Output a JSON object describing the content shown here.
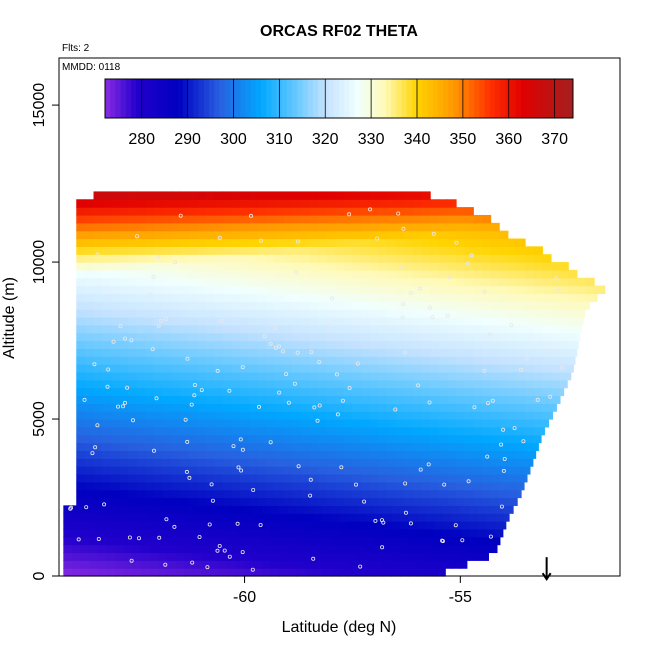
{
  "chart_data": {
    "type": "heatmap",
    "title": "ORCAS RF02 THETA",
    "annotations": [
      "Flts: 2",
      "MMDD: 0118"
    ],
    "xlabel": "Latitude (deg N)",
    "ylabel": "Altitude (m)",
    "xlim": [
      -64.3,
      -51.3
    ],
    "ylim": [
      0,
      16500
    ],
    "x_ticks": [
      -60,
      -55
    ],
    "x_tick_labels": [
      "-60",
      "-55"
    ],
    "y_ticks": [
      0,
      5000,
      10000,
      15000
    ],
    "y_tick_labels": [
      "0",
      "5000",
      "10000",
      "15000"
    ],
    "colorbar": {
      "placement": "top-inside",
      "min": 272,
      "max": 374,
      "ticks": [
        280,
        290,
        300,
        310,
        320,
        330,
        340,
        350,
        360,
        370
      ],
      "tick_labels": [
        "280",
        "290",
        "300",
        "310",
        "320",
        "330",
        "340",
        "350",
        "360",
        "370"
      ],
      "stops": [
        {
          "value": 272,
          "color": "#8a2be2"
        },
        {
          "value": 279,
          "color": "#2200cc"
        },
        {
          "value": 288,
          "color": "#0000c0"
        },
        {
          "value": 297,
          "color": "#2860e0"
        },
        {
          "value": 306,
          "color": "#00a8ff"
        },
        {
          "value": 314,
          "color": "#6ccaff"
        },
        {
          "value": 320,
          "color": "#c4e2ff"
        },
        {
          "value": 327,
          "color": "#f0ffff"
        },
        {
          "value": 333,
          "color": "#fffab8"
        },
        {
          "value": 340,
          "color": "#ffd400"
        },
        {
          "value": 348,
          "color": "#ff9800"
        },
        {
          "value": 356,
          "color": "#ff3000"
        },
        {
          "value": 363,
          "color": "#e00000"
        },
        {
          "value": 374,
          "color": "#a42020"
        }
      ]
    },
    "field_region": {
      "top_profile": [
        {
          "lat": -63.9,
          "alt": 12000
        },
        {
          "lat": -63.3,
          "alt": 12150
        },
        {
          "lat": -59.8,
          "alt": 12150
        },
        {
          "lat": -57.2,
          "alt": 12150
        },
        {
          "lat": -56.0,
          "alt": 12350
        },
        {
          "lat": -55.4,
          "alt": 12000
        },
        {
          "lat": -54.5,
          "alt": 11500
        },
        {
          "lat": -53.8,
          "alt": 10800
        },
        {
          "lat": -53.0,
          "alt": 10300
        },
        {
          "lat": -52.4,
          "alt": 9700
        },
        {
          "lat": -51.6,
          "alt": 9200
        }
      ],
      "right_profile": [
        {
          "alt": 9200,
          "lat": -51.6
        },
        {
          "alt": 8500,
          "lat": -52.1
        },
        {
          "alt": 6500,
          "lat": -52.4
        },
        {
          "alt": 5300,
          "lat": -52.8
        },
        {
          "alt": 4500,
          "lat": -53.1
        },
        {
          "alt": 3700,
          "lat": -53.3
        },
        {
          "alt": 2600,
          "lat": -53.6
        },
        {
          "alt": 1800,
          "lat": -53.9
        },
        {
          "alt": 700,
          "lat": -54.2
        },
        {
          "alt": 250,
          "lat": -55.1
        },
        {
          "alt": 0,
          "lat": -55.6
        }
      ],
      "left_lat_upper": -63.9,
      "left_lat_lower": -64.2,
      "left_step_alt": 2200
    },
    "theta_model": {
      "surface_theta": 272,
      "lapse_k_per_km": 5.6,
      "tropopause_alt_south": 9500,
      "tropopause_alt_north": 11000,
      "stratosphere_k_per_km": 16,
      "meridional_k_per_deg": 1.6
    },
    "marker": {
      "type": "arrow-down",
      "lat": -53.0,
      "alt_from": 600,
      "alt_to": -100
    }
  }
}
